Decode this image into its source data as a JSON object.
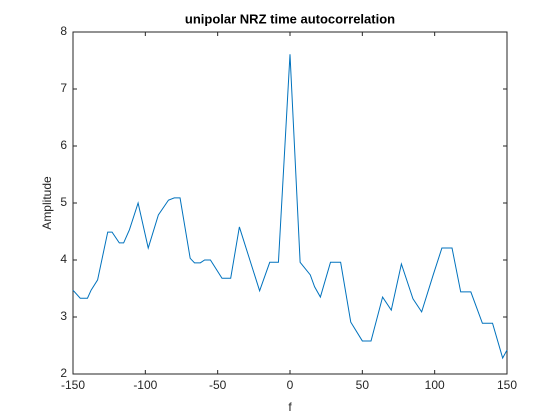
{
  "chart_data": {
    "type": "line",
    "title": "unipolar NRZ time autocorrelation",
    "x_label": "f",
    "y_label": "Amplitude",
    "x": [
      -150,
      -145,
      -140,
      -137.5,
      -133,
      -126,
      -123,
      -118,
      -115,
      -111,
      -105,
      -98,
      -91,
      -84,
      -80,
      -76,
      -69,
      -66,
      -62,
      -59,
      -55,
      -47,
      -41,
      -35,
      -21,
      -14,
      -8,
      0,
      7,
      14,
      17,
      21,
      28,
      35,
      42,
      50,
      56,
      64,
      70,
      77,
      85,
      91,
      99,
      105,
      112,
      118,
      125,
      133,
      140,
      147,
      150
    ],
    "series": [
      {
        "name": "autocorrelation",
        "color": "#0072bd",
        "values": [
          3.47,
          3.33,
          3.33,
          3.47,
          3.65,
          4.49,
          4.49,
          4.3,
          4.3,
          4.53,
          5.0,
          4.21,
          4.79,
          5.05,
          5.09,
          5.09,
          4.03,
          3.95,
          3.95,
          4.0,
          4.0,
          3.68,
          3.68,
          4.58,
          3.46,
          3.96,
          3.96,
          7.61,
          3.96,
          3.74,
          3.53,
          3.35,
          3.96,
          3.96,
          2.91,
          2.58,
          2.58,
          3.35,
          3.12,
          3.93,
          3.32,
          3.09,
          3.74,
          4.21,
          4.21,
          3.44,
          3.44,
          2.89,
          2.89,
          2.28,
          2.42
        ]
      }
    ],
    "xlim": [
      -150,
      150
    ],
    "xticks": [
      -150,
      -100,
      -50,
      0,
      50,
      100,
      150
    ],
    "ylim": [
      2,
      8
    ],
    "yticks": [
      2,
      3,
      4,
      5,
      6,
      7,
      8
    ],
    "grid": false
  }
}
